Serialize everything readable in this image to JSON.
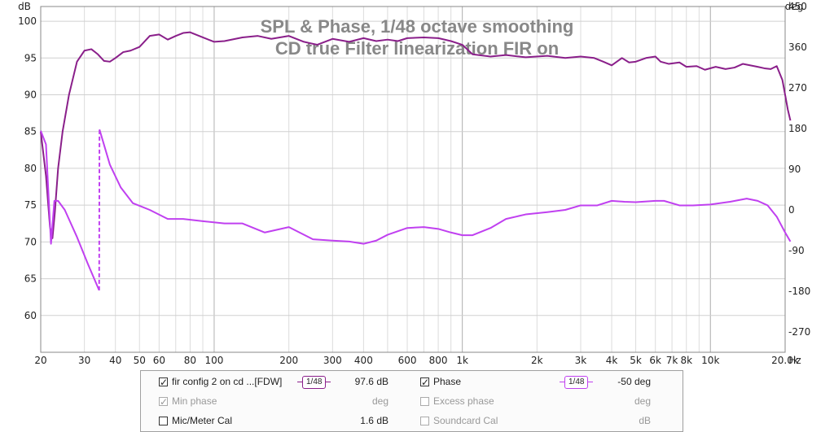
{
  "chart_data": {
    "type": "line",
    "title": "SPL & Phase, 1/48 octave smoothing",
    "subtitle": "CD true Filter linearization FIR on",
    "y_unit": "dB",
    "y2_unit": "deg",
    "x_unit": "Hz",
    "xlim": [
      20,
      20000
    ],
    "x_scale": "log",
    "ylim": [
      55,
      102
    ],
    "y2lim": [
      -315,
      450
    ],
    "grid": true,
    "x_ticks": [
      {
        "v": 20,
        "label": "20"
      },
      {
        "v": 30,
        "label": "30"
      },
      {
        "v": 40,
        "label": "40"
      },
      {
        "v": 50,
        "label": "50"
      },
      {
        "v": 60,
        "label": "60"
      },
      {
        "v": 80,
        "label": "80"
      },
      {
        "v": 100,
        "label": "100"
      },
      {
        "v": 200,
        "label": "200"
      },
      {
        "v": 300,
        "label": "300"
      },
      {
        "v": 400,
        "label": "400"
      },
      {
        "v": 600,
        "label": "600"
      },
      {
        "v": 800,
        "label": "800"
      },
      {
        "v": 1000,
        "label": "1k"
      },
      {
        "v": 2000,
        "label": "2k"
      },
      {
        "v": 3000,
        "label": "3k"
      },
      {
        "v": 4000,
        "label": "4k"
      },
      {
        "v": 5000,
        "label": "5k"
      },
      {
        "v": 6000,
        "label": "6k"
      },
      {
        "v": 7000,
        "label": "7k"
      },
      {
        "v": 8000,
        "label": "8k"
      },
      {
        "v": 10000,
        "label": "10k"
      },
      {
        "v": 20000,
        "label": "20.0k"
      }
    ],
    "y_ticks": [
      60,
      65,
      70,
      75,
      80,
      85,
      90,
      95,
      100
    ],
    "y2_ticks": [
      -270,
      -180,
      -90,
      0,
      90,
      180,
      270,
      360,
      450
    ],
    "series": [
      {
        "name": "fir config 2 on cd ...[FDW]",
        "axis": "left",
        "color": "#8a1f8a",
        "points": [
          [
            20,
            85
          ],
          [
            21,
            79
          ],
          [
            21.8,
            72
          ],
          [
            22.3,
            70.5
          ],
          [
            22.8,
            74
          ],
          [
            23.5,
            80
          ],
          [
            24.5,
            85
          ],
          [
            26,
            90
          ],
          [
            28,
            94.5
          ],
          [
            30,
            96
          ],
          [
            32,
            96.2
          ],
          [
            34,
            95.5
          ],
          [
            36,
            94.6
          ],
          [
            38,
            94.5
          ],
          [
            40,
            95
          ],
          [
            43,
            95.8
          ],
          [
            46,
            96
          ],
          [
            50,
            96.5
          ],
          [
            55,
            98
          ],
          [
            60,
            98.2
          ],
          [
            65,
            97.5
          ],
          [
            70,
            98
          ],
          [
            75,
            98.4
          ],
          [
            80,
            98.5
          ],
          [
            90,
            97.8
          ],
          [
            100,
            97.2
          ],
          [
            110,
            97.3
          ],
          [
            130,
            97.8
          ],
          [
            150,
            98
          ],
          [
            170,
            97.6
          ],
          [
            200,
            98
          ],
          [
            230,
            97.2
          ],
          [
            260,
            96.8
          ],
          [
            300,
            97.6
          ],
          [
            350,
            97.2
          ],
          [
            400,
            97.7
          ],
          [
            450,
            97.3
          ],
          [
            500,
            97.5
          ],
          [
            550,
            97.3
          ],
          [
            600,
            97.7
          ],
          [
            700,
            97.8
          ],
          [
            800,
            97.7
          ],
          [
            900,
            97.3
          ],
          [
            1000,
            96.8
          ],
          [
            1100,
            95.5
          ],
          [
            1300,
            95.2
          ],
          [
            1500,
            95.4
          ],
          [
            1800,
            95.1
          ],
          [
            2200,
            95.3
          ],
          [
            2600,
            95
          ],
          [
            3000,
            95.2
          ],
          [
            3400,
            95
          ],
          [
            3700,
            94.5
          ],
          [
            4000,
            94
          ],
          [
            4400,
            95
          ],
          [
            4700,
            94.4
          ],
          [
            5000,
            94.5
          ],
          [
            5500,
            95
          ],
          [
            6000,
            95.2
          ],
          [
            6300,
            94.5
          ],
          [
            6800,
            94.2
          ],
          [
            7500,
            94.4
          ],
          [
            8000,
            93.8
          ],
          [
            8800,
            93.9
          ],
          [
            9500,
            93.4
          ],
          [
            10500,
            93.8
          ],
          [
            11500,
            93.5
          ],
          [
            12500,
            93.7
          ],
          [
            13500,
            94.2
          ],
          [
            14500,
            94
          ],
          [
            15500,
            93.8
          ],
          [
            16500,
            93.6
          ],
          [
            17500,
            93.5
          ],
          [
            18500,
            93.9
          ],
          [
            19500,
            92
          ],
          [
            20000,
            90
          ],
          [
            20500,
            88
          ],
          [
            21000,
            86.5
          ]
        ]
      },
      {
        "name": "Phase",
        "axis": "right",
        "color": "#c040f0",
        "points": [
          [
            20,
            175
          ],
          [
            21,
            145
          ],
          [
            22,
            -75
          ],
          [
            22.7,
            20
          ],
          [
            23.5,
            20
          ],
          [
            25,
            0
          ],
          [
            28,
            -60
          ],
          [
            31,
            -120
          ],
          [
            34.4,
            -178
          ],
          [
            34.5,
            178
          ],
          [
            38,
            100
          ],
          [
            42,
            50
          ],
          [
            47,
            15
          ],
          [
            55,
            0
          ],
          [
            65,
            -20
          ],
          [
            75,
            -20
          ],
          [
            90,
            -25
          ],
          [
            110,
            -30
          ],
          [
            130,
            -30
          ],
          [
            160,
            -50
          ],
          [
            200,
            -38
          ],
          [
            250,
            -65
          ],
          [
            300,
            -68
          ],
          [
            350,
            -70
          ],
          [
            400,
            -75
          ],
          [
            450,
            -68
          ],
          [
            500,
            -55
          ],
          [
            600,
            -40
          ],
          [
            700,
            -38
          ],
          [
            800,
            -42
          ],
          [
            900,
            -50
          ],
          [
            1000,
            -56
          ],
          [
            1100,
            -56
          ],
          [
            1300,
            -40
          ],
          [
            1500,
            -20
          ],
          [
            1800,
            -10
          ],
          [
            2200,
            -5
          ],
          [
            2600,
            0
          ],
          [
            3000,
            10
          ],
          [
            3500,
            10
          ],
          [
            4000,
            20
          ],
          [
            4500,
            18
          ],
          [
            5000,
            17
          ],
          [
            6000,
            20
          ],
          [
            6500,
            20
          ],
          [
            7500,
            10
          ],
          [
            8500,
            10
          ],
          [
            10000,
            12
          ],
          [
            12000,
            18
          ],
          [
            14000,
            25
          ],
          [
            15500,
            20
          ],
          [
            17000,
            10
          ],
          [
            18500,
            -15
          ],
          [
            20000,
            -50
          ],
          [
            21000,
            -70
          ]
        ]
      }
    ]
  },
  "legend": {
    "row1": {
      "name": "fir config 2 on cd ...[FDW]",
      "smoothing": "1/48",
      "value": "97.6 dB",
      "phase_label": "Phase",
      "phase_smoothing": "1/48",
      "phase_value": "-50 deg"
    },
    "row2": {
      "min_phase": "Min phase",
      "min_phase_unit": "deg",
      "excess_phase": "Excess phase",
      "excess_phase_unit": "deg"
    },
    "row3": {
      "mic_cal": "Mic/Meter Cal",
      "mic_cal_value": "1.6 dB",
      "soundcard_cal": "Soundcard Cal",
      "soundcard_cal_unit": "dB"
    }
  }
}
